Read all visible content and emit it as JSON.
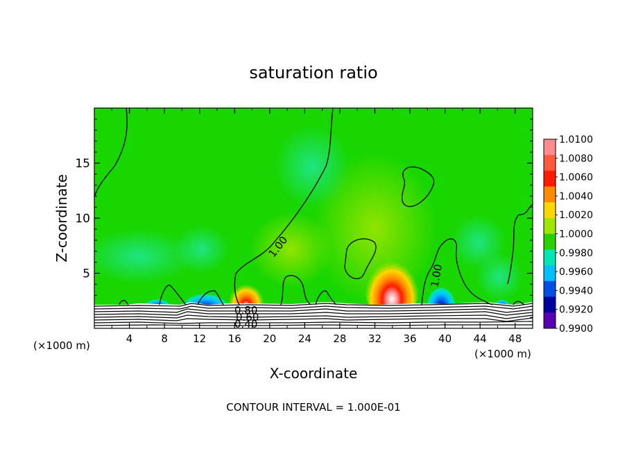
{
  "chart_data": {
    "type": "heatmap",
    "title": "saturation ratio",
    "xlabel": "X-coordinate",
    "ylabel": "Z-coordinate",
    "x_unit_left": "(×1000 m)",
    "x_unit_right": "(×1000 m)",
    "footer": "CONTOUR INTERVAL = 1.000E-01",
    "xlim": [
      0,
      50
    ],
    "ylim": [
      0,
      20
    ],
    "x_ticks": [
      4,
      8,
      12,
      16,
      20,
      24,
      28,
      32,
      36,
      40,
      44,
      48
    ],
    "y_ticks": [
      5,
      10,
      15
    ],
    "colorbar": {
      "levels": [
        "1.0100",
        "1.0080",
        "1.0060",
        "1.0040",
        "1.0020",
        "1.0000",
        "0.9980",
        "0.9960",
        "0.9940",
        "0.9920",
        "0.9900"
      ],
      "colors": [
        "#ff8c8c",
        "#ff5a3c",
        "#ff1a00",
        "#ff8c00",
        "#ffd700",
        "#a0e600",
        "#28d200",
        "#00e6b4",
        "#00bfff",
        "#0050e6",
        "#0000a0",
        "#5a00b4"
      ]
    },
    "contour_labels": [
      {
        "text": "1.00",
        "x": 19.5,
        "z": 7.8
      },
      {
        "text": "1.00",
        "x": 38.3,
        "z": 4.3
      },
      {
        "text": "0.80",
        "x": 17.2,
        "z": 1.55
      },
      {
        "text": "0.60",
        "x": 17.5,
        "z": 0.9
      },
      {
        "text": "0.40",
        "x": 17.3,
        "z": 0.35
      }
    ],
    "features": [
      {
        "kind": "supersaturation",
        "x_center": 33.5,
        "z_center": 2.5,
        "peak": 1.01
      },
      {
        "kind": "supersaturation",
        "x_center": 17.5,
        "z_center": 2.5,
        "peak": 1.008
      },
      {
        "kind": "subsaturation",
        "x_center": 12.5,
        "z_center": 2.4,
        "min": 0.992
      },
      {
        "kind": "subsaturation",
        "x_center": 39.5,
        "z_center": 2.6,
        "min": 0.994
      }
    ]
  }
}
